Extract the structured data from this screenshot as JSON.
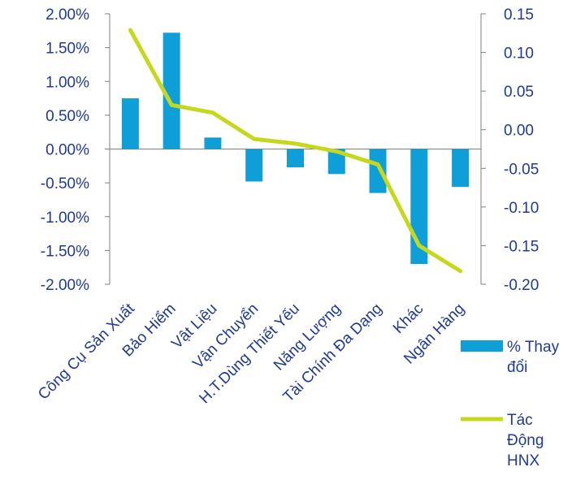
{
  "chart_data": {
    "type": "bar",
    "categories": [
      "Công Cụ Sản Xuất",
      "Bảo Hiểm",
      "Vật Liệu",
      "Vận Chuyển",
      "H.T.Dùng Thiết Yếu",
      "Năng Lượng",
      "Tài Chính Đa Dạng",
      "Khác",
      "Ngân Hàng"
    ],
    "series": [
      {
        "name": "% Thay đổi",
        "type": "bar",
        "axis": "left",
        "color": "#0e9fd8",
        "values": [
          0.75,
          1.72,
          0.17,
          -0.48,
          -0.27,
          -0.37,
          -0.65,
          -1.7,
          -0.56
        ]
      },
      {
        "name": "Tác Động HNX",
        "type": "line",
        "axis": "right",
        "color": "#c6d81e",
        "values": [
          0.129,
          0.032,
          0.022,
          -0.012,
          -0.018,
          -0.028,
          -0.045,
          -0.15,
          -0.183
        ]
      }
    ],
    "y_left": {
      "min": -2.0,
      "max": 2.0,
      "ticks": [
        "2.00%",
        "1.50%",
        "1.00%",
        "0.50%",
        "0.00%",
        "-0.50%",
        "-1.00%",
        "-1.50%",
        "-2.00%"
      ]
    },
    "y_right": {
      "min": -0.2,
      "max": 0.15,
      "ticks": [
        "0.15",
        "0.10",
        "0.05",
        "0.00",
        "-0.05",
        "-0.10",
        "-0.15",
        "-0.20"
      ]
    },
    "legend": {
      "position": "right",
      "bar_label_lines": [
        "% Thay",
        "đổi"
      ],
      "line_label_lines": [
        "Tác",
        "Động",
        "HNX"
      ]
    },
    "grid": false,
    "title": "",
    "xlabel": "",
    "ylabel": ""
  }
}
